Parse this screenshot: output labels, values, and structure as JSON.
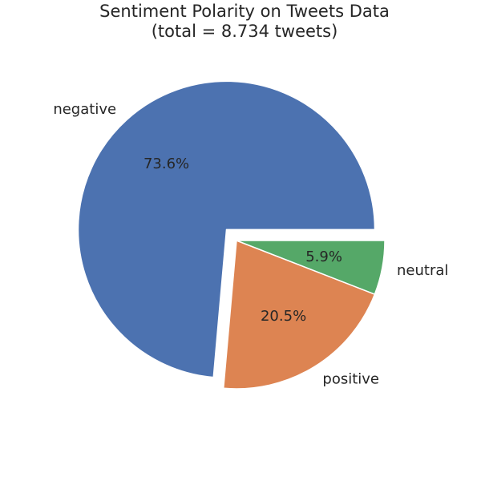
{
  "chart_data": {
    "type": "pie",
    "title": "Sentiment Polarity on Tweets Data\n(total = 8.734 tweets)",
    "title_lines": [
      "Sentiment Polarity on Tweets Data",
      "(total = 8.734 tweets)"
    ],
    "labels": [
      "negative",
      "positive",
      "neutral"
    ],
    "values": [
      73.6,
      20.5,
      5.9
    ],
    "value_labels": [
      "73.6%",
      "20.5%",
      "5.9%"
    ],
    "colors": [
      "#4c72b0",
      "#dd8452",
      "#55a868"
    ],
    "explode": [
      0.1,
      0,
      0
    ],
    "start_angle_deg": 0,
    "direction": "counterclockwise",
    "legend": "none"
  }
}
